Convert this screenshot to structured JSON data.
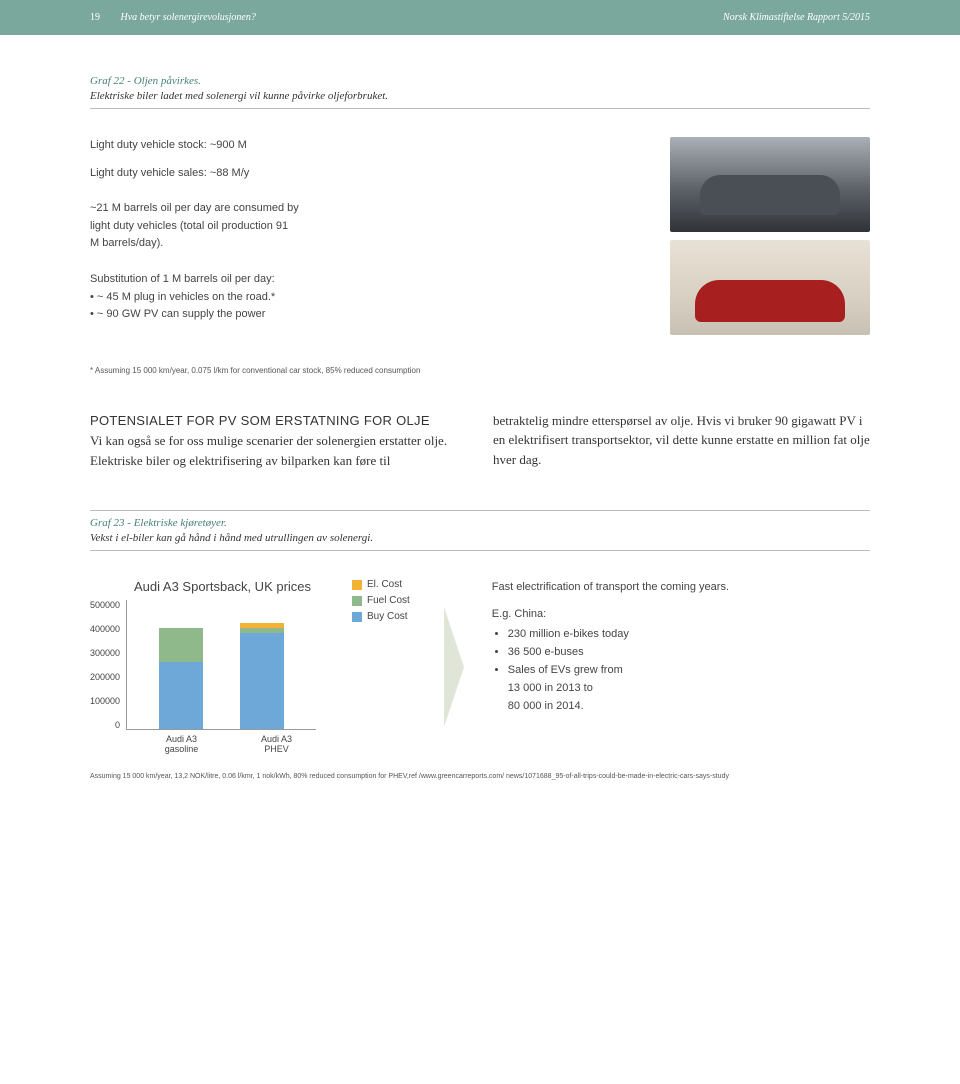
{
  "header": {
    "page_number": "19",
    "title_left": "Hva betyr solenergirevolusjonen?",
    "title_right": "Norsk Klimastiftelse Rapport 5/2015"
  },
  "graf22": {
    "label": "Graf 22 - Oljen påvirkes.",
    "subtitle": "Elektriske biler ladet med solenergi vil kunne påvirke oljeforbruket."
  },
  "fig1": {
    "block1_l1": "Light duty vehicle stock: ~900 M",
    "block1_l2": "Light duty vehicle sales: ~88 M/y",
    "block2_l1": "~21 M barrels oil per day are consumed by",
    "block2_l2": "light duty vehicles (total oil production 91",
    "block2_l3": "M barrels/day).",
    "block3_l1": "Substitution of 1 M barrels oil per day:",
    "block3_b1": "~ 45 M plug in vehicles on the road.*",
    "block3_b2": "~ 90 GW PV can supply the power",
    "footnote": "* Assuming 15 000 km/year, 0.075 l/km for conventional car stock, 85% reduced consumption"
  },
  "body": {
    "left_title": "POTENSIALET FOR PV SOM ERSTATNING FOR OLJE",
    "left_text": "Vi kan også se for oss mulige scenarier der solenergien erstatter olje. Elektriske biler og elektrifisering av bilparken kan føre til",
    "right_text": "betraktelig mindre etterspørsel av olje. Hvis vi bruker 90 gigawatt PV i en elektrifisert transportsektor, vil dette kunne erstatte en million fat olje hver dag."
  },
  "graf23": {
    "label": "Graf 23 - Elektriske kjøretøyer.",
    "subtitle": "Vekst i el-biler kan gå hånd i hånd med utrullingen av solenergi."
  },
  "chart": {
    "title": "Audi A3 Sportsback, UK prices",
    "y_ticks": [
      "500000",
      "400000",
      "300000",
      "200000",
      "100000",
      "0"
    ],
    "y_max": 500000,
    "colors": {
      "el": "#f2b233",
      "fuel": "#8fb98a",
      "buy": "#6ea8d9",
      "grid": "#999999",
      "bg": "#ffffff"
    },
    "bars": [
      {
        "label": "Audi A3 gasoline",
        "buy": 260000,
        "fuel": 130000,
        "el": 0
      },
      {
        "label": "Audi A3 PHEV",
        "buy": 370000,
        "fuel": 20000,
        "el": 20000
      }
    ],
    "legend": [
      {
        "label": "El. Cost",
        "color": "#f2b233"
      },
      {
        "label": "Fuel Cost",
        "color": "#8fb98a"
      },
      {
        "label": "Buy Cost",
        "color": "#6ea8d9"
      }
    ]
  },
  "fig2_right": {
    "line1": "Fast electrification of transport the coming years.",
    "line2": "E.g. China:",
    "b1": "230 million e-bikes today",
    "b2": "36 500 e-buses",
    "b3": "Sales of EVs grew from",
    "b3a": "13 000 in 2013 to",
    "b3b": "80 000 in 2014."
  },
  "final_footnote": "Assuming 15 000 km/year, 13,2 NOK/litre, 0.06 l/kmr, 1 nok/kWh, 80% reduced consumption for PHEV,ref /www.greencarreports.com/ news/1071688_95-of-all-trips-could-be-made-in-electric-cars-says-study"
}
